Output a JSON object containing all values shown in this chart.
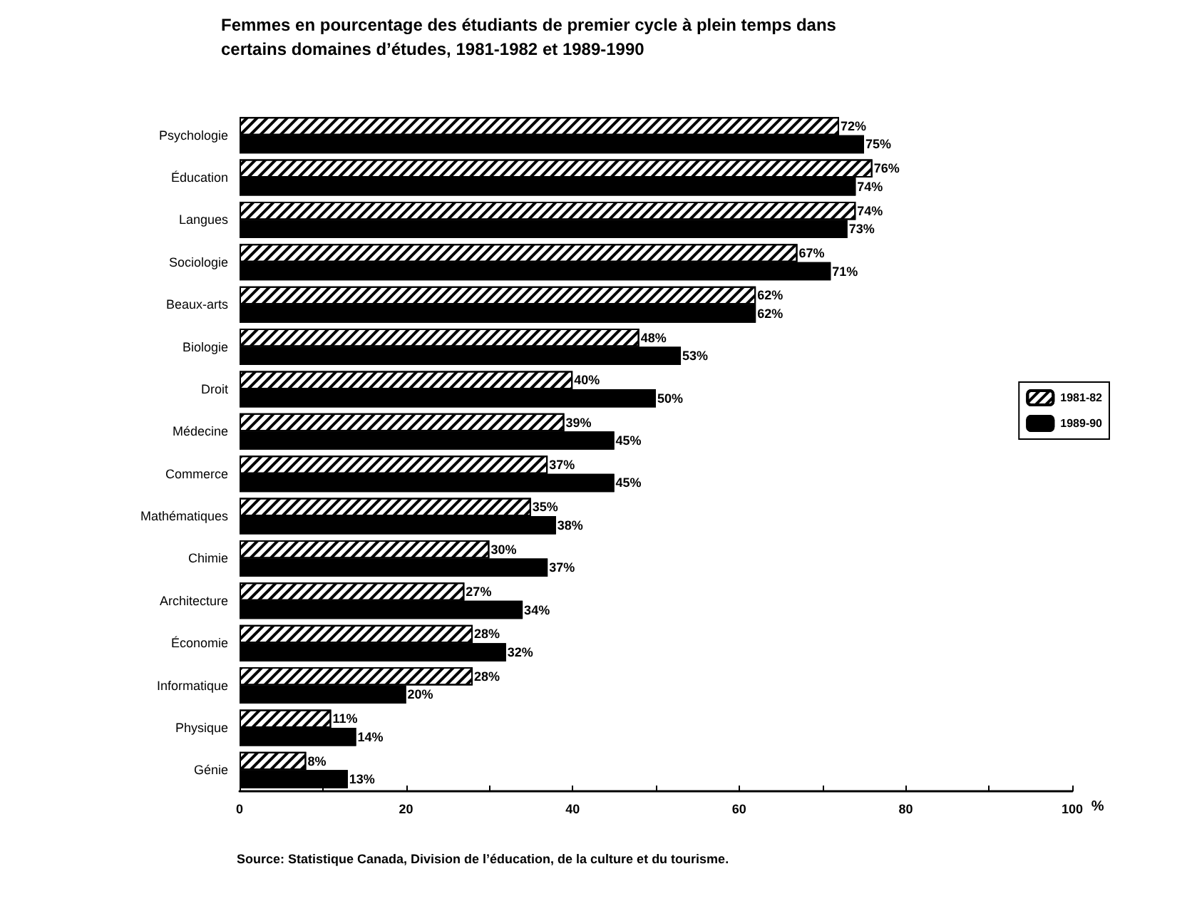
{
  "chart_data": {
    "type": "bar",
    "orientation": "horizontal",
    "title": "Femmes en pourcentage des étudiants de premier cycle à plein temps dans\ncertains domaines d’études, 1981-1982 et 1989-1990",
    "xlabel": "%",
    "categories": [
      "Psychologie",
      "Éducation",
      "Langues",
      "Sociologie",
      "Beaux-arts",
      "Biologie",
      "Droit",
      "Médecine",
      "Commerce",
      "Mathématiques",
      "Chimie",
      "Architecture",
      "Économie",
      "Informatique",
      "Physique",
      "Génie"
    ],
    "series": [
      {
        "name": "1981-82",
        "color": "#ffffff",
        "values": [
          72,
          76,
          74,
          67,
          62,
          48,
          40,
          39,
          37,
          35,
          30,
          27,
          28,
          28,
          11,
          8
        ],
        "value_labels": [
          "72%",
          "76%",
          "74%",
          "67%",
          "62%",
          "48%",
          "40%",
          "39%",
          "37%",
          "35%",
          "30%",
          "27%",
          "28%",
          "28%",
          "11%",
          "8%"
        ]
      },
      {
        "name": "1989-90",
        "color": "#000000",
        "values": [
          75,
          74,
          73,
          71,
          62,
          53,
          50,
          45,
          45,
          38,
          37,
          34,
          32,
          20,
          14,
          13
        ],
        "value_labels": [
          "75%",
          "74%",
          "73%",
          "71%",
          "62%",
          "53%",
          "50%",
          "45%",
          "45%",
          "38%",
          "37%",
          "34%",
          "32%",
          "20%",
          "14%",
          "13%"
        ]
      }
    ],
    "xlim": [
      0,
      100
    ],
    "xticks": [
      0,
      {
        "value": 10,
        "label": null
      },
      20,
      {
        "value": 30,
        "label": null
      },
      40,
      {
        "value": 50,
        "label": null
      },
      60,
      {
        "value": 70,
        "label": null
      },
      80,
      {
        "value": 90,
        "label": null
      },
      100
    ],
    "legend": "right",
    "grid": false,
    "annotations": [
      "Source: Statistique Canada, Division de l’éducation, de la culture et du tourisme."
    ]
  }
}
